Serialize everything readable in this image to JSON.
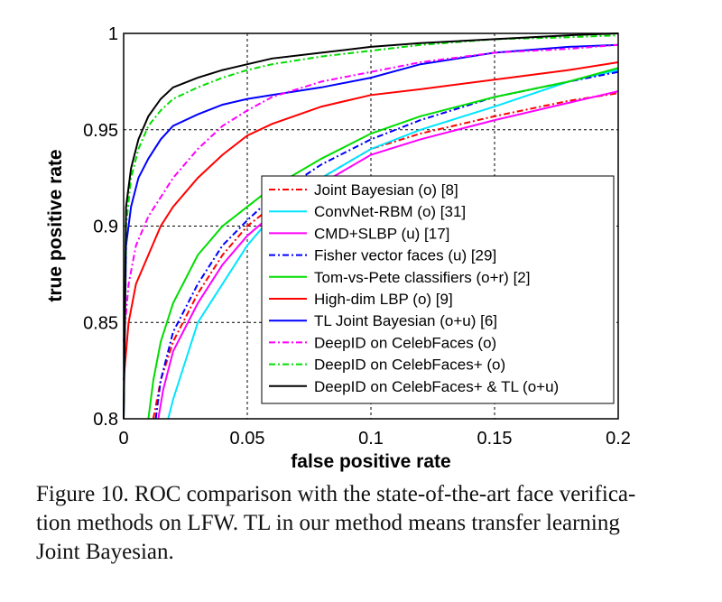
{
  "chart_data": {
    "type": "line",
    "title": "",
    "xlabel": "false positive rate",
    "ylabel": "true positive rate",
    "xlim": [
      0,
      0.2
    ],
    "ylim": [
      0.8,
      1.0
    ],
    "xticks": [
      "0",
      "0.05",
      "0.1",
      "0.15",
      "0.2"
    ],
    "yticks": [
      "0.8",
      "0.85",
      "0.9",
      "0.95",
      "1"
    ],
    "grid": true,
    "legend_position": "bottom-right",
    "series": [
      {
        "name": "Joint Bayesian (o) [8]",
        "color": "#ff0000",
        "dash": "dashdot",
        "x": [
          0.012,
          0.015,
          0.02,
          0.03,
          0.04,
          0.05,
          0.06,
          0.08,
          0.1,
          0.12,
          0.15,
          0.18,
          0.2
        ],
        "y": [
          0.8,
          0.82,
          0.84,
          0.865,
          0.885,
          0.9,
          0.91,
          0.925,
          0.94,
          0.948,
          0.957,
          0.965,
          0.969
        ]
      },
      {
        "name": "ConvNet-RBM (o) [31]",
        "color": "#00e5ff",
        "dash": "solid",
        "x": [
          0.018,
          0.02,
          0.025,
          0.03,
          0.04,
          0.05,
          0.06,
          0.08,
          0.1,
          0.12,
          0.15,
          0.18,
          0.2
        ],
        "y": [
          0.8,
          0.81,
          0.83,
          0.85,
          0.87,
          0.89,
          0.905,
          0.925,
          0.94,
          0.95,
          0.962,
          0.975,
          0.981
        ]
      },
      {
        "name": "CMD+SLBP (u) [17]",
        "color": "#ff00ff",
        "dash": "solid",
        "x": [
          0.014,
          0.016,
          0.02,
          0.03,
          0.04,
          0.05,
          0.06,
          0.08,
          0.1,
          0.12,
          0.15,
          0.18,
          0.2
        ],
        "y": [
          0.8,
          0.815,
          0.835,
          0.86,
          0.88,
          0.895,
          0.906,
          0.922,
          0.937,
          0.945,
          0.955,
          0.964,
          0.97
        ]
      },
      {
        "name": "Fisher vector faces (u) [29]",
        "color": "#0000ff",
        "dash": "dashdot",
        "x": [
          0.013,
          0.015,
          0.02,
          0.03,
          0.04,
          0.05,
          0.06,
          0.08,
          0.1,
          0.12,
          0.15,
          0.18,
          0.2
        ],
        "y": [
          0.8,
          0.82,
          0.845,
          0.87,
          0.89,
          0.903,
          0.915,
          0.932,
          0.945,
          0.955,
          0.967,
          0.975,
          0.98
        ]
      },
      {
        "name": "Tom-vs-Pete classifiers (o+r) [2]",
        "color": "#00dd00",
        "dash": "solid",
        "x": [
          0.01,
          0.012,
          0.015,
          0.02,
          0.03,
          0.04,
          0.05,
          0.06,
          0.08,
          0.1,
          0.12,
          0.15,
          0.18,
          0.2
        ],
        "y": [
          0.8,
          0.82,
          0.84,
          0.86,
          0.885,
          0.9,
          0.91,
          0.92,
          0.935,
          0.948,
          0.957,
          0.967,
          0.975,
          0.982
        ]
      },
      {
        "name": "High-dim LBP (o) [9]",
        "color": "#ff0000",
        "dash": "solid",
        "x": [
          0,
          0.002,
          0.005,
          0.01,
          0.015,
          0.02,
          0.03,
          0.04,
          0.05,
          0.06,
          0.08,
          0.1,
          0.12,
          0.15,
          0.18,
          0.2
        ],
        "y": [
          0.82,
          0.85,
          0.87,
          0.885,
          0.9,
          0.91,
          0.925,
          0.937,
          0.947,
          0.953,
          0.962,
          0.968,
          0.971,
          0.976,
          0.981,
          0.985
        ]
      },
      {
        "name": "TL Joint Bayesian (o+u)    [6]",
        "color": "#0000ff",
        "dash": "solid",
        "x": [
          0,
          0.001,
          0.003,
          0.006,
          0.01,
          0.015,
          0.02,
          0.03,
          0.04,
          0.05,
          0.06,
          0.08,
          0.1,
          0.12,
          0.15,
          0.18,
          0.2
        ],
        "y": [
          0.8,
          0.89,
          0.91,
          0.925,
          0.935,
          0.945,
          0.952,
          0.958,
          0.963,
          0.966,
          0.968,
          0.972,
          0.977,
          0.984,
          0.99,
          0.993,
          0.994
        ]
      },
      {
        "name": "DeepID on CelebFaces (o)",
        "color": "#ff00ff",
        "dash": "dashdot",
        "x": [
          0,
          0.002,
          0.005,
          0.01,
          0.015,
          0.02,
          0.03,
          0.04,
          0.05,
          0.06,
          0.08,
          0.1,
          0.12,
          0.15,
          0.18,
          0.2
        ],
        "y": [
          0.84,
          0.87,
          0.89,
          0.905,
          0.915,
          0.925,
          0.94,
          0.952,
          0.96,
          0.967,
          0.975,
          0.98,
          0.985,
          0.99,
          0.992,
          0.994
        ]
      },
      {
        "name": "DeepID on CelebFaces+ (o)",
        "color": "#00dd00",
        "dash": "dashdot",
        "x": [
          0,
          0.001,
          0.003,
          0.006,
          0.01,
          0.015,
          0.02,
          0.03,
          0.04,
          0.05,
          0.06,
          0.08,
          0.1,
          0.12,
          0.15,
          0.18,
          0.2
        ],
        "y": [
          0.8,
          0.9,
          0.925,
          0.94,
          0.952,
          0.96,
          0.966,
          0.972,
          0.977,
          0.981,
          0.984,
          0.988,
          0.991,
          0.994,
          0.997,
          0.998,
          0.999
        ]
      },
      {
        "name": "DeepID on CelebFaces+ & TL (o+u)",
        "color": "#000000",
        "dash": "solid",
        "x": [
          0,
          0.001,
          0.003,
          0.006,
          0.01,
          0.015,
          0.02,
          0.03,
          0.04,
          0.05,
          0.06,
          0.08,
          0.1,
          0.12,
          0.15,
          0.18,
          0.2
        ],
        "y": [
          0.8,
          0.91,
          0.93,
          0.945,
          0.957,
          0.966,
          0.972,
          0.977,
          0.981,
          0.984,
          0.987,
          0.99,
          0.993,
          0.995,
          0.997,
          0.999,
          1.0
        ]
      }
    ]
  },
  "caption": {
    "line1": "Figure 10. ROC comparison with the state-of-the-art face verifica-",
    "line2": "tion methods on LFW. TL in our method means transfer learning",
    "line3": "Joint Bayesian."
  }
}
